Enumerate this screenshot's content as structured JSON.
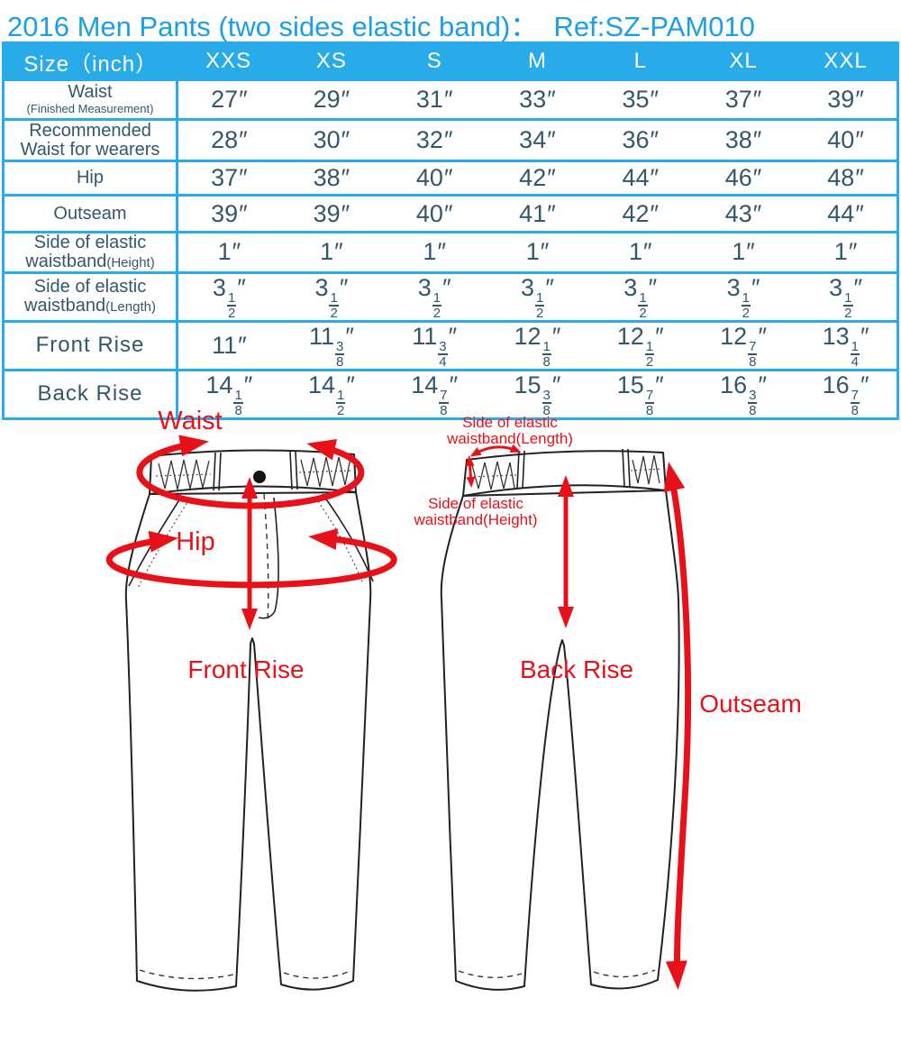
{
  "title": "2016 Men Pants (two sides elastic band)：  Ref:SZ-PAM010",
  "colors": {
    "accent_blue": "#2aabe9",
    "title_blue": "#1b9fe8",
    "table_text": "#33576b",
    "annotation_red": "#e8111a"
  },
  "size_table": {
    "header": [
      "Size（inch）",
      "XXS",
      "XS",
      "S",
      "M",
      "L",
      "XL",
      "XXL"
    ],
    "rows": [
      {
        "label_lines": [
          [
            [
              "Waist",
              "md"
            ]
          ],
          [
            [
              "(Finished Measurement)",
              "sm"
            ]
          ]
        ],
        "values": [
          "27",
          "29",
          "31",
          "33",
          "35",
          "37",
          "39"
        ]
      },
      {
        "label_lines": [
          [
            [
              "Recommended",
              "md"
            ]
          ],
          [
            [
              "Waist for wearers",
              "md"
            ]
          ]
        ],
        "values": [
          "28",
          "30",
          "32",
          "34",
          "36",
          "38",
          "40"
        ]
      },
      {
        "label_lines": [
          [
            [
              "Hip",
              "md"
            ]
          ]
        ],
        "values": [
          "37",
          "38",
          "40",
          "42",
          "44",
          "46",
          "48"
        ]
      },
      {
        "label_lines": [
          [
            [
              "Outseam",
              "md"
            ]
          ]
        ],
        "values": [
          "39",
          "39",
          "40",
          "41",
          "42",
          "43",
          "44"
        ]
      },
      {
        "label_lines": [
          [
            [
              "Side of elastic",
              "md"
            ]
          ],
          [
            [
              "waistband",
              "md"
            ],
            [
              "(Height)",
              "pr"
            ]
          ]
        ],
        "values": [
          "1",
          "1",
          "1",
          "1",
          "1",
          "1",
          "1"
        ]
      },
      {
        "label_lines": [
          [
            [
              "Side of elastic",
              "md"
            ]
          ],
          [
            [
              "waistband",
              "md"
            ],
            [
              "(Length)",
              "pr"
            ]
          ]
        ],
        "values": [
          "3 1/2",
          "3 1/2",
          "3 1/2",
          "3 1/2",
          "3 1/2",
          "3 1/2",
          "3 1/2"
        ]
      },
      {
        "label_lines": [
          [
            [
              "Front Rise",
              "lg"
            ]
          ]
        ],
        "values": [
          "11",
          "11 3/8",
          "11 3/4",
          "12 1/8",
          "12 1/2",
          "12 7/8",
          "13 1/4"
        ]
      },
      {
        "label_lines": [
          [
            [
              "Back Rise",
              "lg"
            ]
          ]
        ],
        "values": [
          "14 1/8",
          "14 1/2",
          "14 7/8",
          "15 3/8",
          "15 7/8",
          "16 3/8",
          "16 7/8"
        ]
      }
    ],
    "unit_mark": "″"
  },
  "diagram": {
    "front": {
      "waist_label": "Waist",
      "hip_label": "Hip",
      "front_rise_label": "Front Rise"
    },
    "back": {
      "elastic_length_line1": "Side of elastic",
      "elastic_length_line2": "waistband(Length)",
      "elastic_height_line1": "Side of elastic",
      "elastic_height_line2": "waistband(Height)",
      "back_rise_label": "Back Rise",
      "outseam_label": "Outseam"
    }
  }
}
